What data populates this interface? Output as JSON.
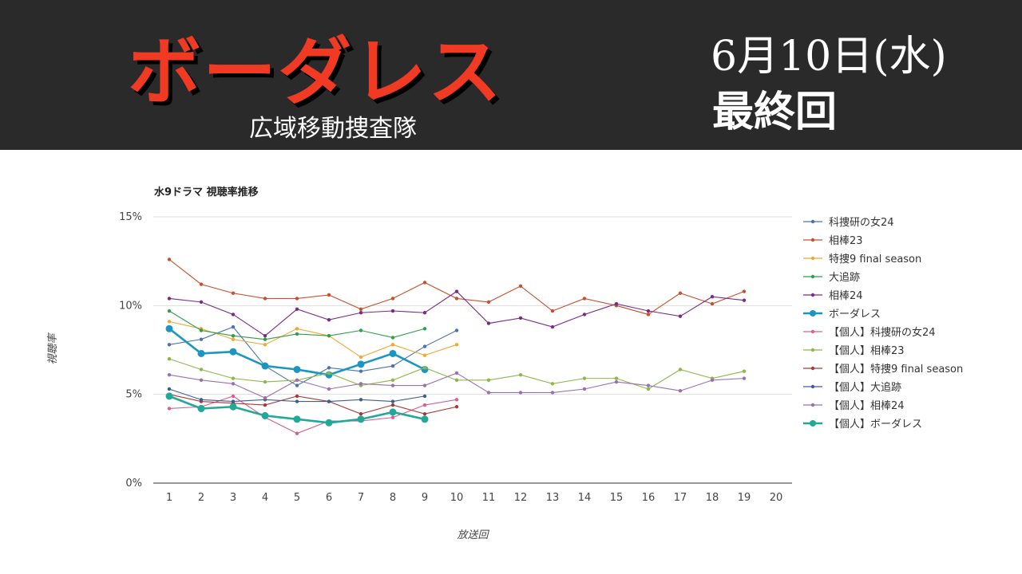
{
  "header": {
    "title": "ボーダレス",
    "subtitle": "広域移動捜査隊",
    "date": "6月10日(水)",
    "episode_note": "最終回",
    "title_color": "#f03a24"
  },
  "chart_data": {
    "type": "line",
    "title": "水9ドラマ 視聴率推移",
    "xlabel": "放送回",
    "ylabel": "視聴率",
    "ylim": [
      0,
      15
    ],
    "y_ticks": [
      "0%",
      "5%",
      "10%",
      "15%"
    ],
    "x_ticks": [
      "1",
      "2",
      "3",
      "4",
      "5",
      "6",
      "7",
      "8",
      "9",
      "10",
      "11",
      "12",
      "13",
      "14",
      "15",
      "16",
      "17",
      "18",
      "19",
      "20"
    ],
    "grid": true,
    "legend": "right",
    "series": [
      {
        "name": "科捜研の女24",
        "color": "#4a72b0",
        "values": [
          7.8,
          8.1,
          8.8,
          6.6,
          5.5,
          6.5,
          6.3,
          6.6,
          7.7,
          8.6
        ]
      },
      {
        "name": "相棒23",
        "color": "#c8502e",
        "values": [
          12.6,
          11.2,
          10.7,
          10.4,
          10.4,
          10.6,
          9.8,
          10.4,
          11.3,
          10.4,
          10.2,
          11.1,
          9.7,
          10.4,
          10.0,
          9.5,
          10.7,
          10.1,
          10.8
        ]
      },
      {
        "name": "特捜9 final season",
        "color": "#f0a830",
        "values": [
          9.1,
          8.7,
          8.1,
          7.8,
          8.7,
          8.3,
          7.1,
          7.8,
          7.2,
          7.8
        ]
      },
      {
        "name": "大追跡",
        "color": "#2e9e48",
        "values": [
          9.7,
          8.6,
          8.3,
          8.1,
          8.4,
          8.3,
          8.6,
          8.2,
          8.7
        ]
      },
      {
        "name": "相棒24",
        "color": "#7a2a8a",
        "values": [
          10.4,
          10.2,
          9.5,
          8.3,
          9.8,
          9.2,
          9.6,
          9.7,
          9.6,
          10.8,
          9.0,
          9.3,
          8.8,
          9.5,
          10.1,
          9.7,
          9.4,
          10.5,
          10.3
        ]
      },
      {
        "name": "ボーダレス",
        "color": "#1a96c0",
        "highlight": true,
        "values": [
          8.7,
          7.3,
          7.4,
          6.6,
          6.4,
          6.1,
          6.7,
          7.3,
          6.4
        ]
      },
      {
        "name": "【個人】科捜研の女24",
        "color": "#d86090",
        "values": [
          4.2,
          4.3,
          4.9,
          3.7,
          2.8,
          3.5,
          3.5,
          3.7,
          4.4,
          4.7
        ]
      },
      {
        "name": "【個人】相棒23",
        "color": "#8cb84a",
        "values": [
          7.0,
          6.4,
          5.9,
          5.7,
          5.8,
          6.2,
          5.5,
          5.8,
          6.5,
          5.8,
          5.8,
          6.1,
          5.6,
          5.9,
          5.9,
          5.3,
          6.4,
          5.9,
          6.3
        ]
      },
      {
        "name": "【個人】特捜9 final season",
        "color": "#a83838",
        "values": [
          5.0,
          4.6,
          4.5,
          4.4,
          4.9,
          4.6,
          3.9,
          4.4,
          3.9,
          4.3
        ]
      },
      {
        "name": "【個人】大追跡",
        "color": "#3a5e96",
        "values": [
          5.3,
          4.7,
          4.6,
          4.7,
          4.6,
          4.6,
          4.7,
          4.6,
          4.9
        ]
      },
      {
        "name": "【個人】相棒24",
        "color": "#9a70b0",
        "values": [
          6.1,
          5.8,
          5.6,
          4.8,
          5.8,
          5.3,
          5.6,
          5.5,
          5.5,
          6.2,
          5.1,
          5.1,
          5.1,
          5.3,
          5.7,
          5.5,
          5.2,
          5.8,
          5.9
        ]
      },
      {
        "name": "【個人】ボーダレス",
        "color": "#20a898",
        "highlight": true,
        "values": [
          4.9,
          4.2,
          4.3,
          3.8,
          3.6,
          3.4,
          3.6,
          4.0,
          3.6
        ]
      }
    ]
  }
}
